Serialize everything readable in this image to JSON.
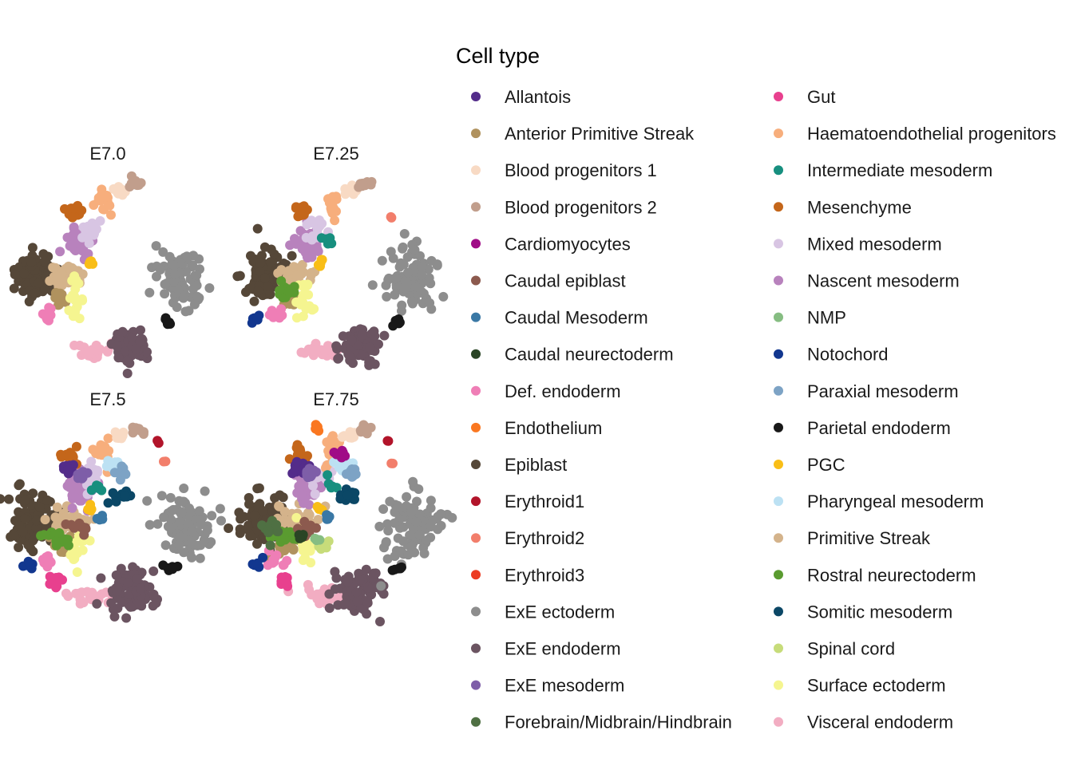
{
  "chart_data": {
    "type": "scatter",
    "description_panels": [
      "E7.0",
      "E7.25",
      "E7.5",
      "E7.75"
    ],
    "panels": [
      {
        "title": "E7.0"
      },
      {
        "title": "E7.25"
      },
      {
        "title": "E7.5"
      },
      {
        "title": "E7.75"
      }
    ],
    "axes": "none",
    "grid": false,
    "legend": {
      "title": "Cell type",
      "placement": "right",
      "columns": 2,
      "entries": [
        {
          "name": "Allantois",
          "color": "#532C8A"
        },
        {
          "name": "Anterior Primitive Streak",
          "color": "#B0925E"
        },
        {
          "name": "Blood progenitors 1",
          "color": "#F8DAC4"
        },
        {
          "name": "Blood progenitors 2",
          "color": "#C19E8C"
        },
        {
          "name": "Cardiomyocytes",
          "color": "#A00C87"
        },
        {
          "name": "Caudal epiblast",
          "color": "#8C5A4E"
        },
        {
          "name": "Caudal Mesoderm",
          "color": "#3A78A5"
        },
        {
          "name": "Caudal neurectoderm",
          "color": "#2A4525"
        },
        {
          "name": "Def. endoderm",
          "color": "#EF7EB6"
        },
        {
          "name": "Endothelium",
          "color": "#FA7720"
        },
        {
          "name": "Epiblast",
          "color": "#554738"
        },
        {
          "name": "Erythroid1",
          "color": "#B2142A"
        },
        {
          "name": "Erythroid2",
          "color": "#F27E6B"
        },
        {
          "name": "Erythroid3",
          "color": "#EC3C23"
        },
        {
          "name": "ExE ectoderm",
          "color": "#8D8D8D"
        },
        {
          "name": "ExE endoderm",
          "color": "#6B5461"
        },
        {
          "name": "ExE mesoderm",
          "color": "#7E5EA8"
        },
        {
          "name": "Forebrain/Midbrain/Hindbrain",
          "color": "#4F7043"
        },
        {
          "name": "Gut",
          "color": "#E8408E"
        },
        {
          "name": "Haematoendothelial progenitors",
          "color": "#F7AE7C"
        },
        {
          "name": "Intermediate mesoderm",
          "color": "#178F7F"
        },
        {
          "name": "Mesenchyme",
          "color": "#C4661A"
        },
        {
          "name": "Mixed mesoderm",
          "color": "#D8C5E3"
        },
        {
          "name": "Nascent mesoderm",
          "color": "#B882BD"
        },
        {
          "name": "NMP",
          "color": "#86BD82"
        },
        {
          "name": "Notochord",
          "color": "#12378F"
        },
        {
          "name": "Paraxial mesoderm",
          "color": "#7DA3C5"
        },
        {
          "name": "Parietal endoderm",
          "color": "#181818"
        },
        {
          "name": "PGC",
          "color": "#F9BE17"
        },
        {
          "name": "Pharyngeal mesoderm",
          "color": "#BCE1F3"
        },
        {
          "name": "Primitive Streak",
          "color": "#D4B38B"
        },
        {
          "name": "Rostral neurectoderm",
          "color": "#5A9B30"
        },
        {
          "name": "Somitic mesoderm",
          "color": "#0B4766"
        },
        {
          "name": "Spinal cord",
          "color": "#C7DC7A"
        },
        {
          "name": "Surface ectoderm",
          "color": "#F5F590"
        },
        {
          "name": "Visceral endoderm",
          "color": "#F2ADC2"
        }
      ]
    }
  }
}
